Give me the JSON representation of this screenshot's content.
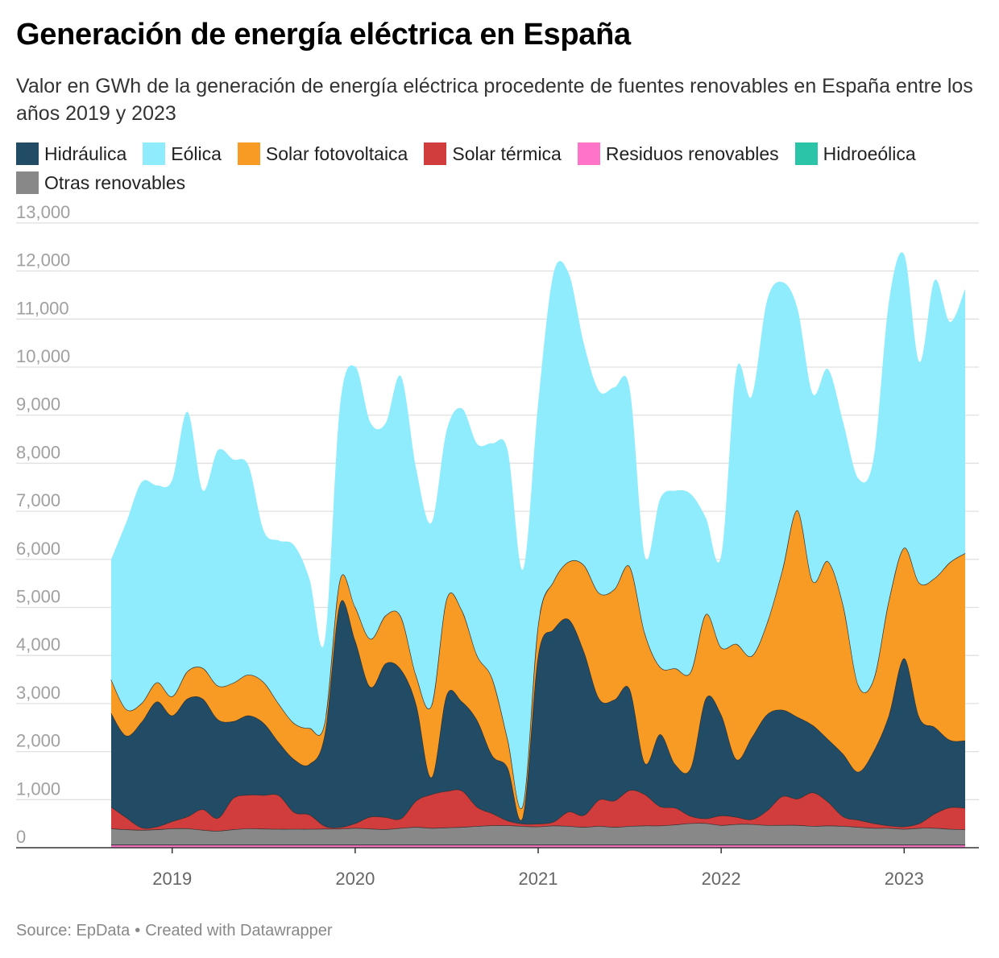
{
  "title": "Generación de energía eléctrica en España",
  "subtitle": "Valor en GWh de la generación de energía eléctrica procedente de fuentes renovables en España entre los años 2019 y 2023",
  "footer": {
    "source": "Source: EpData",
    "separator": "•",
    "credit": "Created with Datawrapper"
  },
  "chart_data": {
    "type": "area",
    "stacked": true,
    "title": "Generación de energía eléctrica en España",
    "subtitle": "Valor en GWh de la generación de energía eléctrica procedente de fuentes renovables en España entre los años 2019 y 2023",
    "x_start": "2018-09",
    "x_end": "2023-05",
    "x_ticks": [
      "2019",
      "2020",
      "2021",
      "2022",
      "2023"
    ],
    "y_ticks": [
      "0",
      "1,000",
      "2,000",
      "3,000",
      "4,000",
      "5,000",
      "6,000",
      "7,000",
      "8,000",
      "9,000",
      "10,000",
      "11,000",
      "12,000",
      "13,000"
    ],
    "ylim": [
      0,
      13200
    ],
    "grid": true,
    "legend_position": "top",
    "x": [
      "2018-09",
      "2018-10",
      "2018-11",
      "2018-12",
      "2019-01",
      "2019-02",
      "2019-03",
      "2019-04",
      "2019-05",
      "2019-06",
      "2019-07",
      "2019-08",
      "2019-09",
      "2019-10",
      "2019-11",
      "2019-12",
      "2020-01",
      "2020-02",
      "2020-03",
      "2020-04",
      "2020-05",
      "2020-06",
      "2020-07",
      "2020-08",
      "2020-09",
      "2020-10",
      "2020-11",
      "2020-12",
      "2021-01",
      "2021-02",
      "2021-03",
      "2021-04",
      "2021-05",
      "2021-06",
      "2021-07",
      "2021-08",
      "2021-09",
      "2021-10",
      "2021-11",
      "2021-12",
      "2022-01",
      "2022-02",
      "2022-03",
      "2022-04",
      "2022-05",
      "2022-06",
      "2022-07",
      "2022-08",
      "2022-09",
      "2022-10",
      "2022-11",
      "2022-12",
      "2023-01",
      "2023-02",
      "2023-03",
      "2023-04",
      "2023-05"
    ],
    "series": [
      {
        "name": "Residuos renovables",
        "color": "#ff73c8",
        "values": [
          60,
          60,
          60,
          60,
          60,
          60,
          60,
          60,
          60,
          60,
          60,
          60,
          60,
          60,
          60,
          60,
          60,
          60,
          60,
          60,
          60,
          60,
          60,
          60,
          60,
          60,
          60,
          60,
          60,
          60,
          60,
          60,
          60,
          60,
          60,
          60,
          60,
          60,
          60,
          60,
          60,
          60,
          60,
          60,
          60,
          60,
          60,
          60,
          60,
          60,
          60,
          60,
          60,
          60,
          60,
          60,
          60
        ]
      },
      {
        "name": "Hidroeólica",
        "color": "#2bc4a9",
        "values": [
          5,
          5,
          5,
          5,
          5,
          5,
          5,
          5,
          5,
          5,
          5,
          5,
          5,
          5,
          5,
          5,
          5,
          5,
          5,
          5,
          5,
          5,
          5,
          5,
          5,
          5,
          5,
          5,
          5,
          5,
          5,
          5,
          5,
          5,
          5,
          5,
          5,
          5,
          5,
          5,
          5,
          5,
          5,
          5,
          5,
          5,
          5,
          5,
          5,
          5,
          5,
          5,
          5,
          5,
          5,
          5,
          5
        ]
      },
      {
        "name": "Otras renovables",
        "color": "#888888",
        "values": [
          335,
          315,
          305,
          315,
          335,
          335,
          305,
          285,
          315,
          335,
          330,
          325,
          325,
          325,
          330,
          330,
          345,
          330,
          320,
          345,
          365,
          345,
          355,
          365,
          385,
          400,
          400,
          385,
          375,
          395,
          385,
          365,
          385,
          365,
          385,
          395,
          395,
          415,
          445,
          445,
          405,
          425,
          425,
          405,
          405,
          405,
          385,
          395,
          385,
          365,
          345,
          345,
          325,
          345,
          345,
          325,
          315
        ]
      },
      {
        "name": "Solar térmica",
        "color": "#d13c3c",
        "values": [
          450,
          250,
          50,
          60,
          150,
          250,
          430,
          270,
          650,
          700,
          700,
          700,
          350,
          300,
          60,
          30,
          100,
          250,
          250,
          200,
          550,
          700,
          760,
          760,
          400,
          250,
          100,
          50,
          60,
          80,
          300,
          250,
          550,
          550,
          750,
          650,
          400,
          350,
          150,
          100,
          200,
          150,
          100,
          300,
          600,
          550,
          700,
          500,
          200,
          150,
          100,
          50,
          50,
          100,
          300,
          450,
          450
        ]
      },
      {
        "name": "Hidráulica",
        "color": "#224c65",
        "values": [
          1950,
          1700,
          2200,
          2600,
          2200,
          2450,
          2300,
          2050,
          1600,
          1650,
          1500,
          1100,
          1100,
          1050,
          1900,
          4650,
          3800,
          2700,
          3200,
          3100,
          2000,
          350,
          2000,
          1850,
          1800,
          1200,
          1100,
          150,
          3500,
          4000,
          4000,
          3400,
          2100,
          2100,
          2100,
          650,
          1500,
          900,
          1000,
          2500,
          2100,
          1200,
          1700,
          2000,
          1800,
          1700,
          1400,
          1300,
          1300,
          1000,
          1500,
          2300,
          3500,
          2200,
          1800,
          1400,
          1400
        ]
      },
      {
        "name": "Solar fotovoltaica",
        "color": "#f89b25",
        "values": [
          700,
          550,
          390,
          400,
          400,
          570,
          640,
          700,
          800,
          850,
          850,
          800,
          750,
          750,
          250,
          500,
          700,
          1000,
          1000,
          1100,
          600,
          1500,
          2000,
          1900,
          1350,
          1600,
          600,
          240,
          650,
          1000,
          1200,
          1800,
          2200,
          2300,
          2550,
          2700,
          1400,
          2000,
          2000,
          1750,
          1400,
          2400,
          1700,
          1900,
          2900,
          4300,
          3000,
          3700,
          3100,
          1800,
          1500,
          2400,
          2300,
          2800,
          3100,
          3700,
          3900
        ]
      },
      {
        "name": "Eólica",
        "color": "#8fecfc",
        "values": [
          2500,
          3900,
          4600,
          4100,
          4500,
          5400,
          3700,
          4900,
          4650,
          4350,
          3150,
          3400,
          3700,
          3100,
          1700,
          3600,
          5000,
          4500,
          4000,
          5000,
          4300,
          3800,
          3500,
          4200,
          4400,
          4900,
          6000,
          4900,
          4600,
          6400,
          6000,
          4600,
          4200,
          4200,
          3700,
          1600,
          3500,
          3700,
          3700,
          2000,
          1900,
          5700,
          5400,
          6700,
          6000,
          4200,
          3900,
          4000,
          3800,
          4300,
          4600,
          6200,
          6100,
          4600,
          6200,
          5000,
          5500
        ]
      }
    ]
  },
  "legend": [
    {
      "label": "Hidráulica",
      "color": "#224c65"
    },
    {
      "label": "Eólica",
      "color": "#8fecfc"
    },
    {
      "label": "Solar fotovoltaica",
      "color": "#f89b25"
    },
    {
      "label": "Solar térmica",
      "color": "#d13c3c"
    },
    {
      "label": "Residuos renovables",
      "color": "#ff73c8"
    },
    {
      "label": "Hidroeólica",
      "color": "#2bc4a9"
    },
    {
      "label": "Otras renovables",
      "color": "#888888"
    }
  ]
}
